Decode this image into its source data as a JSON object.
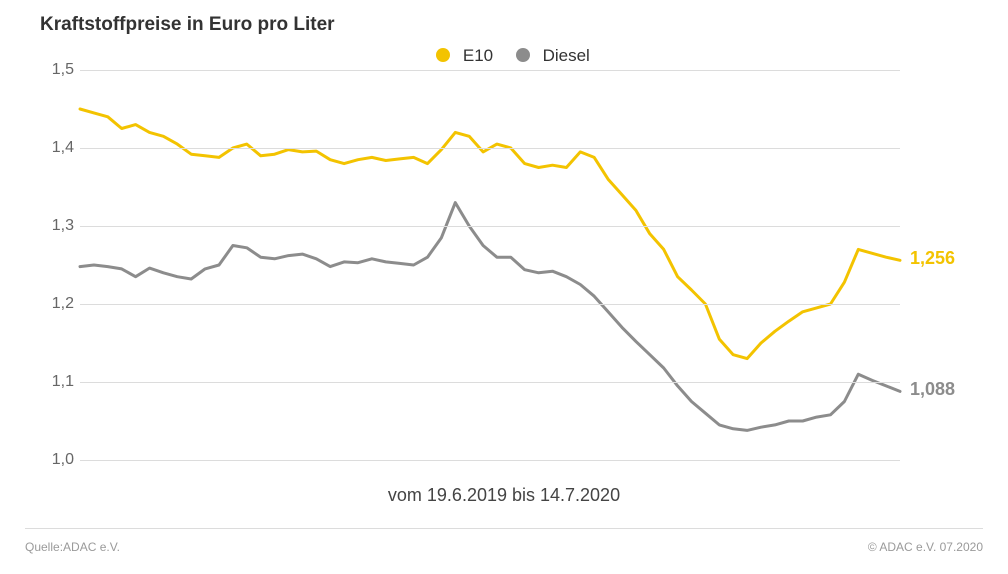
{
  "chart": {
    "type": "line",
    "title": "Kraftstoffpreise in Euro pro Liter",
    "title_fontsize": 19,
    "title_fontweight": 700,
    "title_color": "#333333",
    "background_color": "#ffffff",
    "grid_color": "#dcdcdc",
    "ylabel_color": "#666666",
    "ylabel_fontsize": 16,
    "caption": "vom 19.6.2019 bis 14.7.2020",
    "caption_fontsize": 18,
    "caption_color": "#444444",
    "ylim": [
      1.0,
      1.5
    ],
    "yticks": [
      1.0,
      1.1,
      1.2,
      1.3,
      1.4,
      1.5
    ],
    "ytick_labels": [
      "1,0",
      "1,1",
      "1,2",
      "1,3",
      "1,4",
      "1,5"
    ],
    "line_width": 3,
    "legend": {
      "items": [
        {
          "label": "E10",
          "color": "#f3c300"
        },
        {
          "label": "Diesel",
          "color": "#8c8c8c"
        }
      ],
      "fontsize": 17
    },
    "series": [
      {
        "name": "E10",
        "color": "#f3c300",
        "end_label": "1,256",
        "end_label_color": "#f3c300",
        "end_label_fontsize": 18,
        "end_label_fontweight": 700,
        "values": [
          1.45,
          1.445,
          1.44,
          1.425,
          1.43,
          1.42,
          1.415,
          1.405,
          1.392,
          1.39,
          1.388,
          1.4,
          1.405,
          1.39,
          1.392,
          1.398,
          1.395,
          1.396,
          1.385,
          1.38,
          1.385,
          1.388,
          1.384,
          1.386,
          1.388,
          1.38,
          1.398,
          1.42,
          1.415,
          1.395,
          1.405,
          1.4,
          1.38,
          1.375,
          1.378,
          1.375,
          1.395,
          1.388,
          1.36,
          1.34,
          1.32,
          1.29,
          1.27,
          1.235,
          1.218,
          1.2,
          1.155,
          1.135,
          1.13,
          1.15,
          1.165,
          1.178,
          1.19,
          1.195,
          1.2,
          1.228,
          1.27,
          1.265,
          1.26,
          1.256
        ]
      },
      {
        "name": "Diesel",
        "color": "#8c8c8c",
        "end_label": "1,088",
        "end_label_color": "#8c8c8c",
        "end_label_fontsize": 18,
        "end_label_fontweight": 700,
        "values": [
          1.248,
          1.25,
          1.248,
          1.245,
          1.235,
          1.246,
          1.24,
          1.235,
          1.232,
          1.245,
          1.25,
          1.275,
          1.272,
          1.26,
          1.258,
          1.262,
          1.264,
          1.258,
          1.248,
          1.254,
          1.253,
          1.258,
          1.254,
          1.252,
          1.25,
          1.26,
          1.285,
          1.33,
          1.3,
          1.275,
          1.26,
          1.26,
          1.244,
          1.24,
          1.242,
          1.235,
          1.225,
          1.21,
          1.19,
          1.17,
          1.152,
          1.135,
          1.118,
          1.095,
          1.075,
          1.06,
          1.045,
          1.04,
          1.038,
          1.042,
          1.045,
          1.05,
          1.05,
          1.055,
          1.058,
          1.075,
          1.11,
          1.102,
          1.095,
          1.088
        ]
      }
    ],
    "footer": {
      "source": "Quelle:ADAC e.V.",
      "copyright": "© ADAC e.V. 07.2020",
      "fontsize": 12,
      "color": "#9a9a9a"
    }
  }
}
